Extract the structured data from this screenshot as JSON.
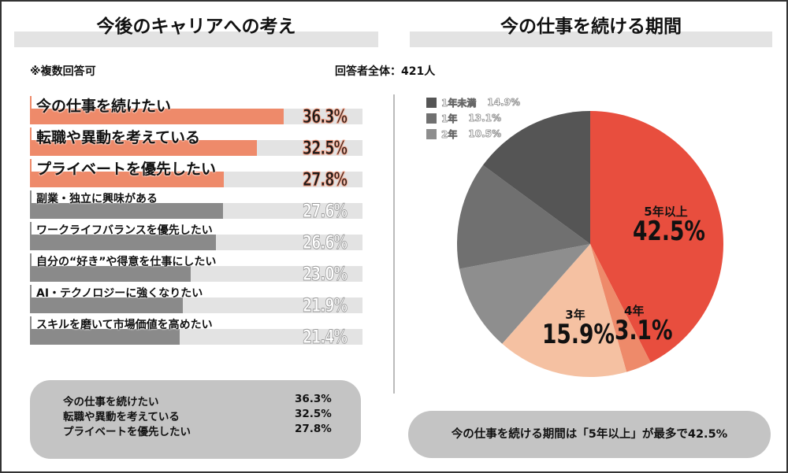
{
  "left": {
    "title": "今後のキャリアへの考え",
    "note": "※複数回答可",
    "respondents": "回答者全体：421人",
    "summary": [
      {
        "label": "今の仕事を続けたい",
        "value": "36.3%"
      },
      {
        "label": "転職や異動を考えている",
        "value": "32.5%"
      },
      {
        "label": "プライベートを優先したい",
        "value": "27.8%"
      }
    ]
  },
  "right": {
    "title": "今の仕事を続ける期間",
    "conclusion": "今の仕事を続ける期間は「5年以上」が最多で42.5%"
  },
  "colors": {
    "highlight": "#ee8a6a",
    "gray_bar": "#8a8a8a",
    "track": "#e3e3e3",
    "pie_5y": "#e84e3e",
    "pie_4y": "#ee8a6a",
    "pie_3y": "#f5c1a2",
    "pie_2y": "#8e8e8e",
    "pie_1y": "#707070",
    "pie_lt1": "#555555"
  },
  "chart_data": [
    {
      "type": "bar",
      "orientation": "horizontal",
      "categories": [
        "今の仕事を続けたい",
        "転職や異動を考えている",
        "プライベートを優先したい",
        "副業・独立に興味がある",
        "ワークライフバランスを優先したい",
        "自分の“好き”や得意を仕事にしたい",
        "AI・テクノロジーに強くなりたい",
        "スキルを磨いて市場価値を高めたい"
      ],
      "values": [
        36.3,
        32.5,
        27.8,
        27.6,
        26.6,
        23.0,
        21.9,
        21.4
      ],
      "labels": [
        "36.3%",
        "32.5%",
        "27.8%",
        "27.6%",
        "26.6%",
        "23.0%",
        "21.9%",
        "21.4%"
      ],
      "highlighted": [
        true,
        true,
        true,
        false,
        false,
        false,
        false,
        false
      ],
      "xlim": [
        0,
        47.6
      ]
    },
    {
      "type": "pie",
      "slices": [
        {
          "name": "5年以上",
          "value": 42.5,
          "label": "42.5%",
          "color": "#e84e3e"
        },
        {
          "name": "4年",
          "value": 3.1,
          "label": "3.1%",
          "color": "#ee8a6a"
        },
        {
          "name": "3年",
          "value": 15.9,
          "label": "15.9%",
          "color": "#f5c1a2"
        },
        {
          "name": "2年",
          "value": 10.5,
          "label": "10.5%",
          "color": "#8e8e8e"
        },
        {
          "name": "1年",
          "value": 13.1,
          "label": "13.1%",
          "color": "#707070"
        },
        {
          "name": "1年未満",
          "value": 14.9,
          "label": "14.9%",
          "color": "#555555"
        }
      ],
      "legend": "top-left",
      "direction": "clockwise from top"
    }
  ]
}
